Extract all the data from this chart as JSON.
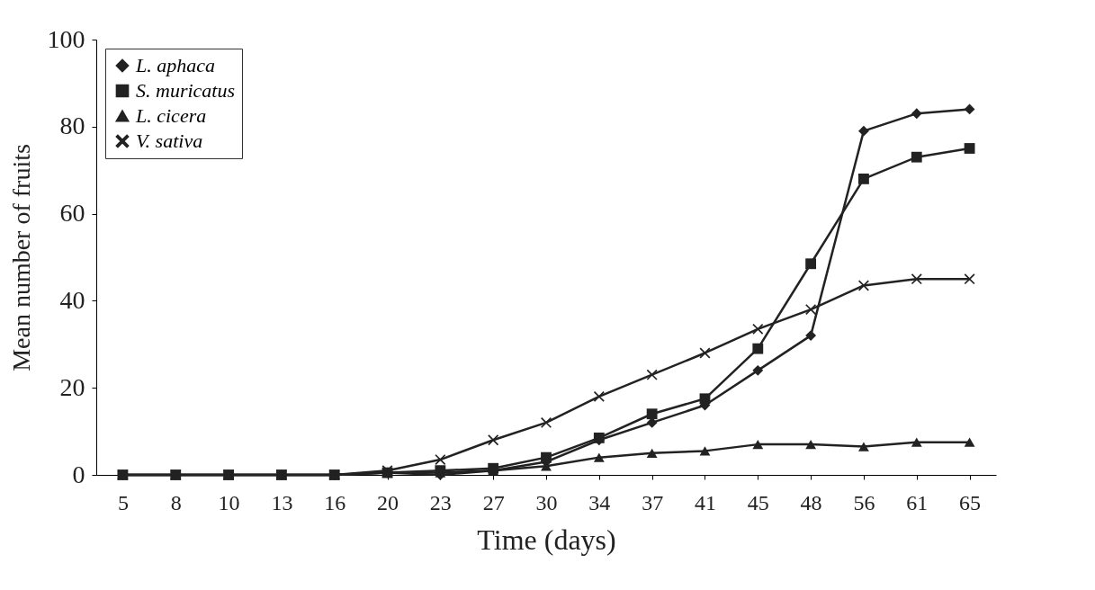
{
  "chart_data": {
    "type": "line",
    "xlabel": "Time (days)",
    "ylabel": "Mean number of fruits",
    "categories": [
      "5",
      "8",
      "10",
      "13",
      "16",
      "20",
      "23",
      "27",
      "30",
      "34",
      "37",
      "41",
      "45",
      "48",
      "56",
      "61",
      "65"
    ],
    "series": [
      {
        "name": "L. aphaca",
        "color": "#222222",
        "marker": "diamond",
        "values": [
          0,
          0,
          0,
          0,
          0,
          0.5,
          0,
          1,
          3,
          8,
          12,
          16,
          24,
          32,
          79,
          83,
          84
        ]
      },
      {
        "name": "S. muricatus",
        "color": "#222222",
        "marker": "square",
        "values": [
          0,
          0,
          0,
          0,
          0,
          0.5,
          1,
          1.5,
          4,
          8.5,
          14,
          17.5,
          29,
          48.5,
          68,
          73,
          75
        ]
      },
      {
        "name": "L. cicera",
        "color": "#222222",
        "marker": "triangle",
        "values": [
          0,
          0,
          0,
          0,
          0,
          0.5,
          0.5,
          1,
          2,
          4,
          5,
          5.5,
          7,
          7,
          6.5,
          7.5,
          7.5
        ]
      },
      {
        "name": "V. sativa",
        "color": "#222222",
        "marker": "cross",
        "values": [
          0,
          0,
          0,
          0,
          0,
          1,
          3.5,
          8,
          12,
          18,
          23,
          28,
          33.5,
          38,
          43.5,
          45,
          45
        ]
      }
    ],
    "ylim": [
      0,
      100
    ],
    "yticks": [
      0,
      20,
      40,
      60,
      80,
      100
    ],
    "grid": false,
    "legend": "top left"
  }
}
